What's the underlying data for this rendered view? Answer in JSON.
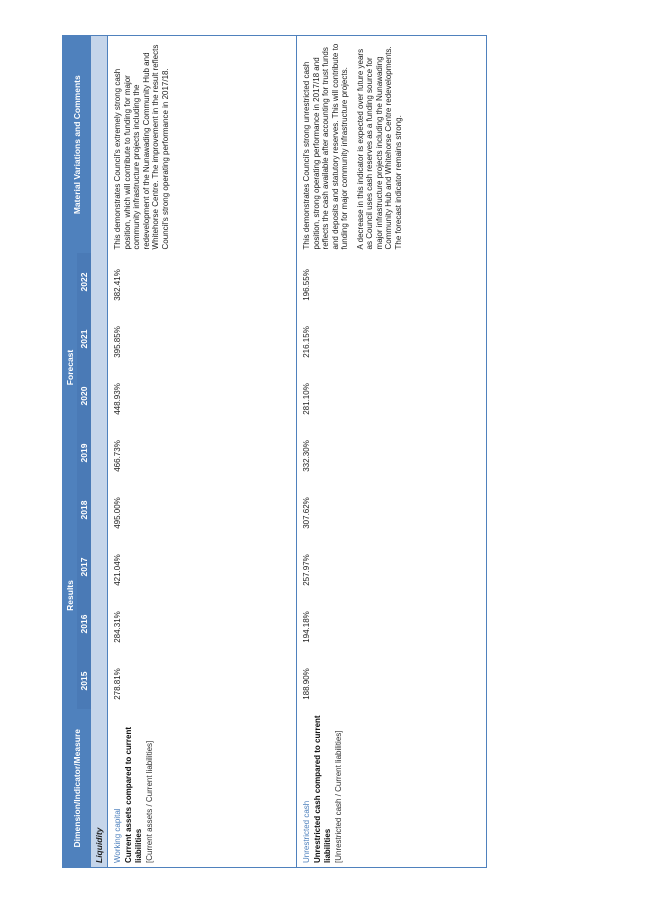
{
  "headers": {
    "dimension": "Dimension/Indicator/Measure",
    "results": "Results",
    "forecast": "Forecast",
    "comments": "Material Variations and Comments",
    "years": [
      "2015",
      "2016",
      "2017",
      "2018",
      "2019",
      "2020",
      "2021",
      "2022"
    ]
  },
  "section": "Liquidity",
  "rows": [
    {
      "title": "Working capital",
      "subtitle": "Current assets compared to current liabilities",
      "formula": "[Current assets / Current liabilities]",
      "values": [
        "278.81%",
        "284.31%",
        "421.04%",
        "495.00%",
        "466.73%",
        "448.93%",
        "395.85%",
        "382.41%"
      ],
      "comments": [
        "This demonstrates Council's extremely strong cash position, which will contribute to funding for major community infrastructure projects including the redevelopment of the Nunawading Community Hub and Whitehorse Centre. The improvement in the result reflects Council's strong operating performance in 2017/18."
      ]
    },
    {
      "title": "Unrestricted cash",
      "subtitle": "Unrestricted cash compared to current liabilities",
      "formula": "[Unrestricted cash / Current liabilities]",
      "values": [
        "188.90%",
        "194.18%",
        "257.97%",
        "307.62%",
        "332.30%",
        "281.10%",
        "216.15%",
        "196.55%"
      ],
      "comments": [
        "This demonstrates Council's strong unrestricted cash position, strong operating performance in 2017/18 and reflects the cash available after accounting for trust funds and deposits and statutory reserves. This will contribute to funding for major community infrastructure projects.",
        "A decrease in this indicator is expected over future years as Council uses cash reserves as a funding source for major infrastructure projects including the Nunawading Community Hub and Whitehorse Centre redevelopments. The forecast indicator remains strong."
      ]
    }
  ]
}
